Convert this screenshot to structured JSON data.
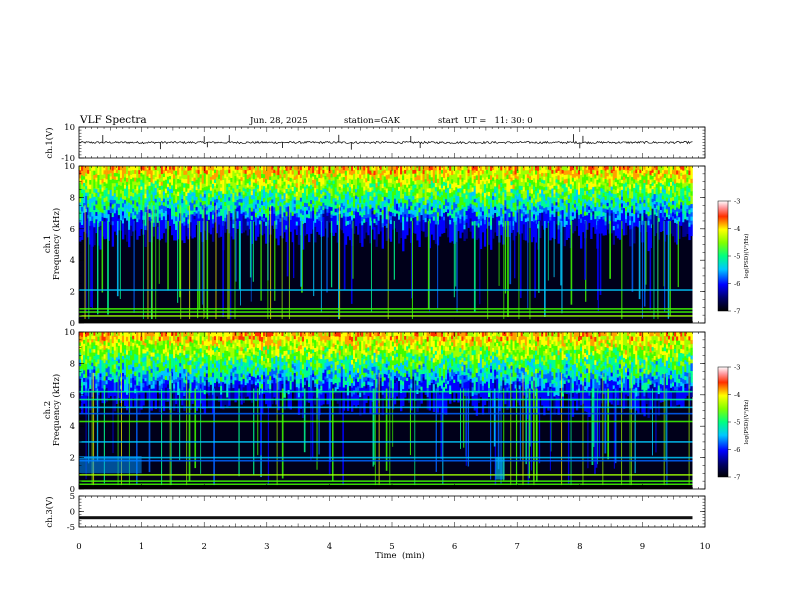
{
  "header": {
    "title": "VLF Spectra",
    "date": "Jun. 28, 2025",
    "station": "station=GAK",
    "start": "start  UT =   11: 30: 0"
  },
  "chart_data": [
    {
      "type": "line",
      "panel": "ch1-waveform",
      "ylabel": "ch.1(V)",
      "ylim": [
        -10,
        10
      ],
      "yticks": [
        "10",
        "-10"
      ],
      "xlim": [
        0,
        10
      ],
      "baseline": 0,
      "spikes_x_min": [
        0.38,
        1.3,
        2.0,
        2.05,
        2.4,
        3.25,
        4.15,
        4.35,
        5.3,
        5.45,
        7.9,
        8.0,
        8.05
      ]
    },
    {
      "type": "heatmap",
      "panel": "ch1-spectrogram",
      "ylabel": "ch.1\nFrequency (kHz)",
      "ylim": [
        0,
        10
      ],
      "xlim": [
        0,
        9.8
      ],
      "yticks": [
        "10",
        "8",
        "6",
        "4",
        "2",
        "0"
      ],
      "colorbar": {
        "label": "log(PSD)(V²/Hz)",
        "range": [
          -7,
          -3
        ],
        "ticks": [
          "-3",
          "-4",
          "-5",
          "-6",
          "-7"
        ]
      },
      "noise_floor_khz": 6.5,
      "lines_khz": [
        0.2,
        0.45,
        0.7,
        0.9,
        2.1
      ]
    },
    {
      "type": "heatmap",
      "panel": "ch2-spectrogram",
      "ylabel": "ch.2\nFrequency (kHz)",
      "ylim": [
        0,
        10
      ],
      "xlim": [
        0,
        9.8
      ],
      "yticks": [
        "10",
        "8",
        "6",
        "4",
        "2",
        "0"
      ],
      "colorbar": {
        "label": "log(PSD)(V²/Hz)",
        "range": [
          -7,
          -3
        ],
        "ticks": [
          "-3",
          "-4",
          "-5",
          "-6",
          "-7"
        ]
      },
      "noise_floor_khz": 6.4,
      "lines_khz": [
        0.3,
        0.5,
        0.9,
        1.8,
        2.0,
        3.0,
        4.3,
        4.8,
        5.2,
        5.7,
        6.2
      ]
    },
    {
      "type": "line",
      "panel": "ch3-waveform",
      "ylabel": "ch.3(V)",
      "ylim": [
        -5,
        5
      ],
      "yticks": [
        "5",
        "0",
        "-5"
      ],
      "xlim": [
        0,
        10
      ],
      "baseline": -2
    }
  ],
  "xaxis": {
    "label": "Time  (min)",
    "ticks": [
      "0",
      "1",
      "2",
      "3",
      "4",
      "5",
      "6",
      "7",
      "8",
      "9",
      "10"
    ]
  }
}
